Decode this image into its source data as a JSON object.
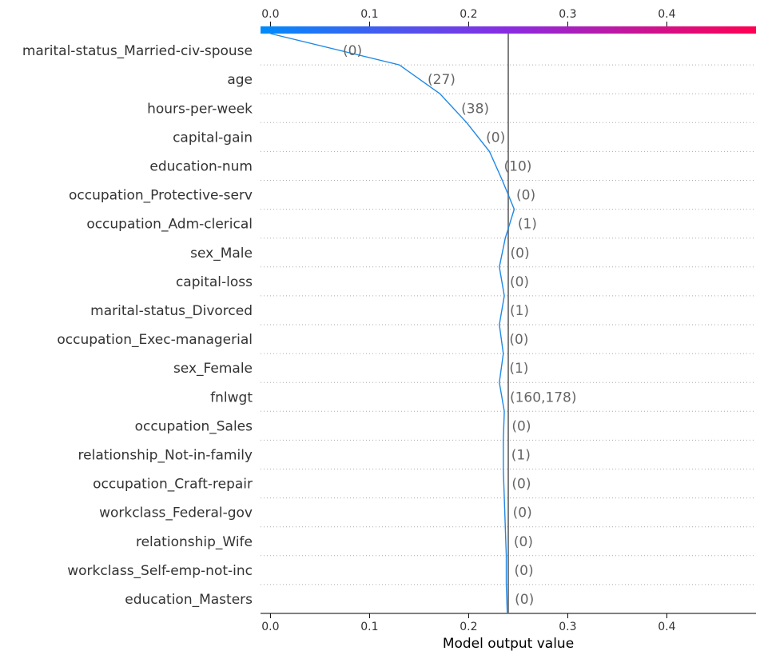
{
  "chart_data": {
    "type": "line",
    "subtype": "shap-decision-plot",
    "xlabel": "Model output value",
    "xlim": [
      -0.01,
      0.49
    ],
    "xticks": [
      0.0,
      0.1,
      0.2,
      0.3,
      0.4
    ],
    "xtick_labels": [
      "0.0",
      "0.1",
      "0.2",
      "0.3",
      "0.4"
    ],
    "base_value": 0.24,
    "colorbar": {
      "position": "top",
      "colors": [
        "#008bfb",
        "#8a2be2",
        "#ff0052"
      ]
    },
    "line_color": "#1e88e5",
    "reference_line_color": "#7f7f7f",
    "features": [
      {
        "name": "marital-status_Married-civ-spouse",
        "value": "(0)",
        "x": 0.13
      },
      {
        "name": "age",
        "value": "(27)",
        "x": 0.171
      },
      {
        "name": "hours-per-week",
        "value": "(38)",
        "x": 0.198
      },
      {
        "name": "capital-gain",
        "value": "(0)",
        "x": 0.221
      },
      {
        "name": "education-num",
        "value": "(10)",
        "x": 0.234
      },
      {
        "name": "occupation_Protective-serv",
        "value": "(0)",
        "x": 0.246
      },
      {
        "name": "occupation_Adm-clerical",
        "value": "(1)",
        "x": 0.237
      },
      {
        "name": "sex_Male",
        "value": "(0)",
        "x": 0.231
      },
      {
        "name": "capital-loss",
        "value": "(0)",
        "x": 0.236
      },
      {
        "name": "marital-status_Divorced",
        "value": "(1)",
        "x": 0.231
      },
      {
        "name": "occupation_Exec-managerial",
        "value": "(0)",
        "x": 0.235
      },
      {
        "name": "sex_Female",
        "value": "(1)",
        "x": 0.231
      },
      {
        "name": "fnlwgt",
        "value": "(160,178)",
        "x": 0.236
      },
      {
        "name": "occupation_Sales",
        "value": "(0)",
        "x": 0.235
      },
      {
        "name": "relationship_Not-in-family",
        "value": "(1)",
        "x": 0.235
      },
      {
        "name": "occupation_Craft-repair",
        "value": "(0)",
        "x": 0.236
      },
      {
        "name": "workclass_Federal-gov",
        "value": "(0)",
        "x": 0.237
      },
      {
        "name": "relationship_Wife",
        "value": "(0)",
        "x": 0.238
      },
      {
        "name": "workclass_Self-emp-not-inc",
        "value": "(0)",
        "x": 0.238
      },
      {
        "name": "education_Masters",
        "value": "(0)",
        "x": 0.239
      }
    ],
    "start_x": 0.0
  }
}
